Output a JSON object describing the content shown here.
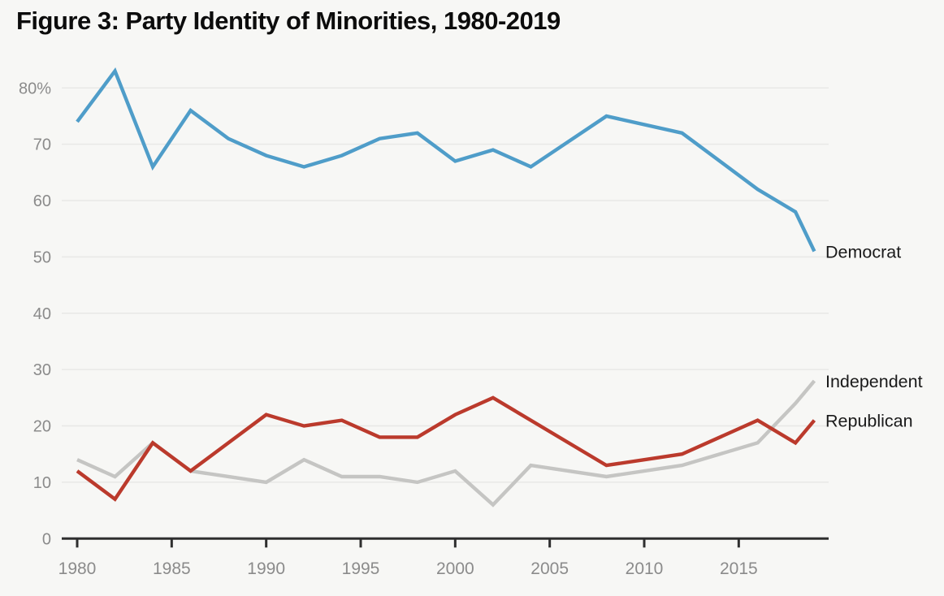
{
  "title": "Figure 3: Party Identity of Minorities, 1980-2019",
  "colors": {
    "background": "#f7f7f5",
    "gridline": "#e8e8e6",
    "axis": "#2f2f2f",
    "tick_label": "#8b8b8b",
    "title_text": "#0c0c0c",
    "series_label_text": "#1a1a1a"
  },
  "chart_data": {
    "type": "line",
    "title": "Figure 3: Party Identity of Minorities, 1980-2019",
    "xlabel": "",
    "ylabel": "",
    "unit": "%",
    "xlim": [
      1979.2,
      2020
    ],
    "ylim": [
      0,
      84
    ],
    "grid": "horizontal-only",
    "legend_position": "right-end-labels",
    "x_ticks": [
      1980,
      1985,
      1990,
      1995,
      2000,
      2005,
      2010,
      2015
    ],
    "y_ticks": [
      0,
      10,
      20,
      30,
      40,
      50,
      60,
      70,
      80
    ],
    "y_tick_labels": [
      "0",
      "10",
      "20",
      "30",
      "40",
      "50",
      "60",
      "70",
      "80%"
    ],
    "years": [
      1980,
      1982,
      1984,
      1986,
      1988,
      1990,
      1992,
      1994,
      1996,
      1998,
      2000,
      2002,
      2004,
      2008,
      2012,
      2016,
      2018,
      2019
    ],
    "series": [
      {
        "name": "Democrat",
        "color": "#4f9dc9",
        "values": [
          74,
          83,
          66,
          76,
          71,
          68,
          66,
          68,
          71,
          72,
          67,
          69,
          66,
          75,
          72,
          62,
          58,
          51
        ]
      },
      {
        "name": "Independent",
        "color": "#c5c5c3",
        "values": [
          14,
          11,
          17,
          12,
          11,
          10,
          14,
          11,
          11,
          10,
          12,
          6,
          13,
          11,
          13,
          17,
          24,
          28
        ]
      },
      {
        "name": "Republican",
        "color": "#bb3a2c",
        "values": [
          12,
          7,
          17,
          12,
          17,
          22,
          20,
          21,
          18,
          18,
          22,
          25,
          21,
          13,
          15,
          21,
          17,
          21
        ]
      }
    ]
  }
}
